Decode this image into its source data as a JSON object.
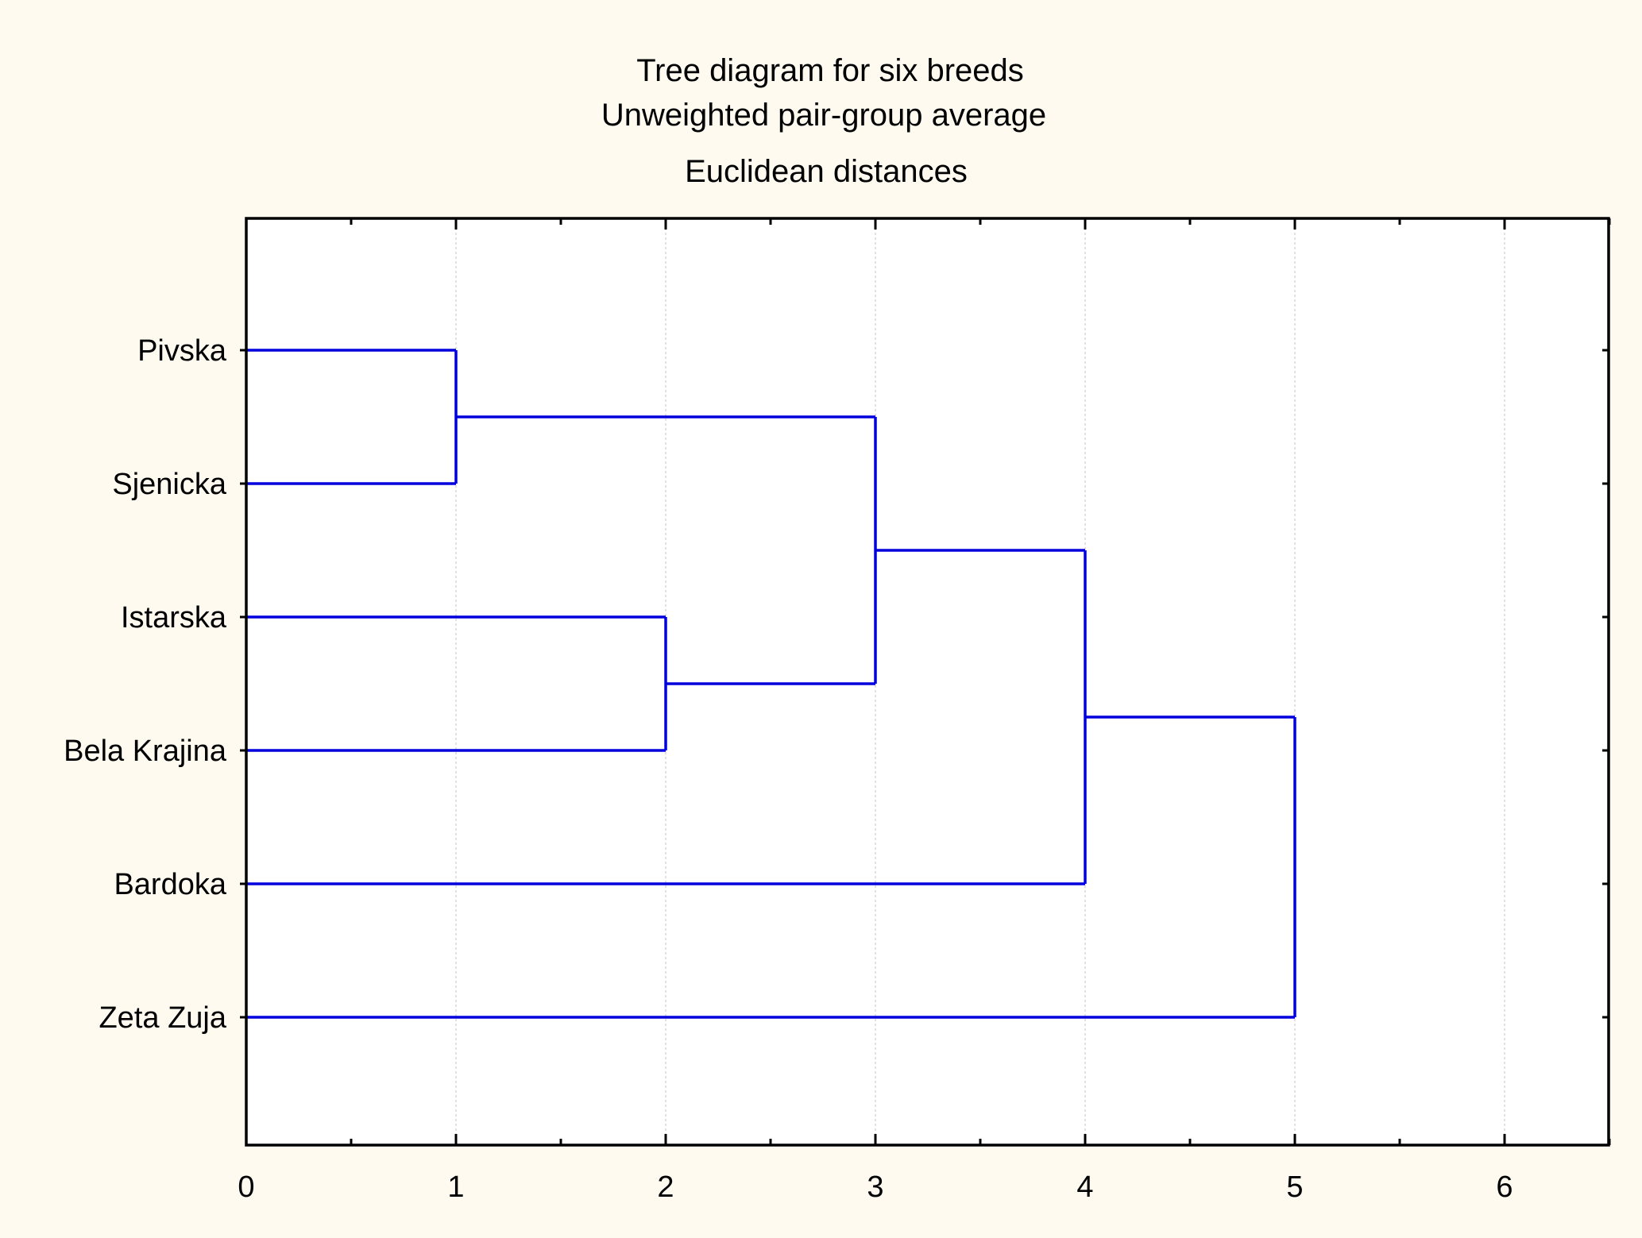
{
  "chart_data": {
    "type": "dendrogram",
    "title": "Tree diagram for six breeds",
    "subtitle": "Unweighted pair-group average",
    "subtitle2": "Euclidean distances",
    "xlabel": "",
    "ylabel": "",
    "xlim": [
      0,
      6.5
    ],
    "x_ticks": [
      "0",
      "1",
      "2",
      "3",
      "4",
      "5",
      "6"
    ],
    "leaves": [
      "Pivska",
      "Sjenicka",
      "Istarska",
      "Bela Krajina",
      "Bardoka",
      "Zeta Zuja"
    ],
    "merges": [
      {
        "left": "Pivska",
        "right": "Sjenicka",
        "distance": 1.0
      },
      {
        "left": "Istarska",
        "right": "Bela Krajina",
        "distance": 2.0
      },
      {
        "left": "Pivska+Sjenicka",
        "right": "Istarska+Bela Krajina",
        "distance": 3.0
      },
      {
        "left": "Pivska+Sjenicka+Istarska+Bela Krajina",
        "right": "Bardoka",
        "distance": 4.0
      },
      {
        "left": "Pivska+Sjenicka+Istarska+Bela Krajina+Bardoka",
        "right": "Zeta Zuja",
        "distance": 5.0
      }
    ],
    "grid": true,
    "colors": {
      "background": "#fefaf0",
      "plot_area": "#ffffff",
      "tree_line": "#0000dd",
      "grid": "#d8d8d8",
      "axis": "#000000"
    }
  }
}
